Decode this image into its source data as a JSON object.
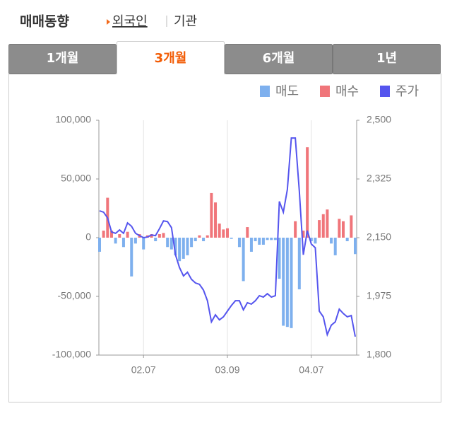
{
  "header": {
    "title": "매매동향",
    "tabs": [
      "외국인",
      "기관"
    ]
  },
  "period_tabs": [
    "1개월",
    "3개월",
    "6개월",
    "1년"
  ],
  "chart_data": {
    "type": "bar-line",
    "categories": [
      null,
      null,
      null,
      null,
      null,
      null,
      null,
      null,
      null,
      null,
      null,
      "02.07",
      null,
      null,
      null,
      null,
      null,
      null,
      null,
      null,
      null,
      null,
      null,
      null,
      null,
      null,
      null,
      null,
      null,
      null,
      null,
      null,
      "03.09",
      null,
      null,
      null,
      null,
      null,
      null,
      null,
      null,
      null,
      null,
      null,
      null,
      null,
      null,
      null,
      null,
      null,
      null,
      null,
      null,
      "04.07",
      null,
      null,
      null,
      null,
      null,
      null,
      null,
      null,
      null,
      null,
      null
    ],
    "series": [
      {
        "name": "매도",
        "color": "#7eb0ee",
        "axis": "y",
        "values": [
          -12000,
          null,
          null,
          null,
          -5000,
          null,
          -8000,
          null,
          -33000,
          -5000,
          null,
          -10000,
          null,
          null,
          -3000,
          null,
          null,
          -8000,
          -10000,
          -15000,
          -20000,
          -18000,
          -15000,
          -8000,
          -3000,
          null,
          -3000,
          null,
          null,
          null,
          null,
          null,
          null,
          -1000,
          null,
          -8000,
          -37000,
          null,
          -12000,
          -3000,
          -6000,
          -6000,
          -2000,
          -2000,
          -2000,
          -35000,
          -75000,
          -76000,
          -77000,
          null,
          -44000,
          null,
          null,
          -3000,
          -5000,
          null,
          null,
          null,
          -5000,
          -15000,
          null,
          null,
          -3000,
          null,
          -14000
        ]
      },
      {
        "name": "매수",
        "color": "#f0757a",
        "axis": "y",
        "values": [
          null,
          6000,
          34000,
          6000,
          null,
          3000,
          null,
          5000,
          null,
          null,
          3000,
          null,
          2000,
          3000,
          null,
          3000,
          4000,
          null,
          null,
          null,
          null,
          null,
          null,
          null,
          null,
          2000,
          null,
          2000,
          38000,
          30000,
          12000,
          7000,
          8000,
          null,
          null,
          null,
          null,
          9000,
          null,
          null,
          null,
          null,
          null,
          null,
          null,
          null,
          null,
          null,
          null,
          14000,
          null,
          6000,
          77000,
          null,
          null,
          15000,
          20000,
          24000,
          null,
          null,
          16000,
          14000,
          null,
          19000,
          null
        ]
      },
      {
        "name": "주가",
        "color": "#5555ee",
        "axis": "y2",
        "values": [
          2230,
          2226,
          2209,
          2167,
          2163,
          2173,
          2163,
          2194,
          2184,
          2163,
          2156,
          2150,
          2152,
          2158,
          2156,
          2177,
          2200,
          2198,
          2180,
          2099,
          2061,
          2036,
          2047,
          2026,
          2015,
          2011,
          1994,
          1962,
          1899,
          1920,
          1905,
          1914,
          1931,
          1948,
          1962,
          1962,
          1935,
          1956,
          1952,
          1962,
          1977,
          1973,
          1983,
          1973,
          1977,
          2258,
          2226,
          2293,
          2447,
          2447,
          2289,
          2099,
          2171,
          2131,
          2120,
          1931,
          1914,
          1861,
          1889,
          1899,
          1937,
          1924,
          1914,
          1918,
          1855
        ]
      }
    ],
    "ylim": [
      -100000,
      100000
    ],
    "yticks": [
      {
        "value": -100000,
        "label": "-100,000"
      },
      {
        "value": -50000,
        "label": "-50,000"
      },
      0,
      {
        "value": 50000,
        "label": "50,000"
      },
      {
        "value": 100000,
        "label": "100,000"
      }
    ],
    "y2lim": [
      1800,
      2500
    ],
    "y2ticks": [
      {
        "value": 1800,
        "label": "1,800"
      },
      {
        "value": 1975,
        "label": "1,975"
      },
      {
        "value": 2150,
        "label": "2,150"
      },
      {
        "value": 2325,
        "label": "2,325"
      },
      {
        "value": 2500,
        "label": "2,500"
      }
    ]
  }
}
